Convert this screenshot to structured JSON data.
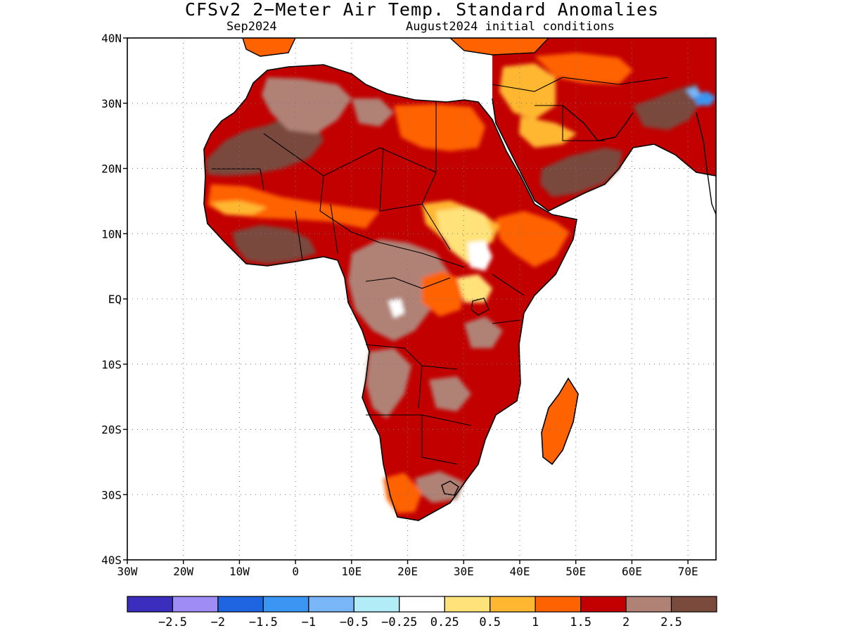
{
  "title": "CFSv2 2−Meter Air Temp. Standard Anomalies",
  "subtitle_left": "Sep2024",
  "subtitle_right": "August2024 initial conditions",
  "map": {
    "lon_range": [
      -30,
      75
    ],
    "lat_range": [
      -40,
      40
    ],
    "grid_dotted": true,
    "y_tick_labels": [
      {
        "lat": 40,
        "label": "40N"
      },
      {
        "lat": 30,
        "label": "30N"
      },
      {
        "lat": 20,
        "label": "20N"
      },
      {
        "lat": 10,
        "label": "10N"
      },
      {
        "lat": 0,
        "label": "EQ"
      },
      {
        "lat": -10,
        "label": "10S"
      },
      {
        "lat": -20,
        "label": "20S"
      },
      {
        "lat": -30,
        "label": "30S"
      },
      {
        "lat": -40,
        "label": "40S"
      }
    ],
    "x_tick_labels": [
      {
        "lon": -30,
        "label": "30W"
      },
      {
        "lon": -20,
        "label": "20W"
      },
      {
        "lon": -10,
        "label": "10W"
      },
      {
        "lon": 0,
        "label": "0"
      },
      {
        "lon": 10,
        "label": "10E"
      },
      {
        "lon": 20,
        "label": "20E"
      },
      {
        "lon": 30,
        "label": "30E"
      },
      {
        "lon": 40,
        "label": "40E"
      },
      {
        "lon": 50,
        "label": "50E"
      },
      {
        "lon": 60,
        "label": "60E"
      },
      {
        "lon": 70,
        "label": "70E"
      }
    ]
  },
  "legend": {
    "colors": [
      "#3b2dbd",
      "#9f8cf5",
      "#1f64e0",
      "#3a96f2",
      "#78b6f7",
      "#b2edf7",
      "#ffffff",
      "#ffe27a",
      "#ffb732",
      "#ff6200",
      "#c20000",
      "#b08276",
      "#7a4a3d"
    ],
    "labels": [
      "−2.5",
      "−2",
      "−1.5",
      "−1",
      "−0.5",
      "−0.25",
      "0.25",
      "0.5",
      "1",
      "1.5",
      "2",
      "2.5"
    ]
  }
}
